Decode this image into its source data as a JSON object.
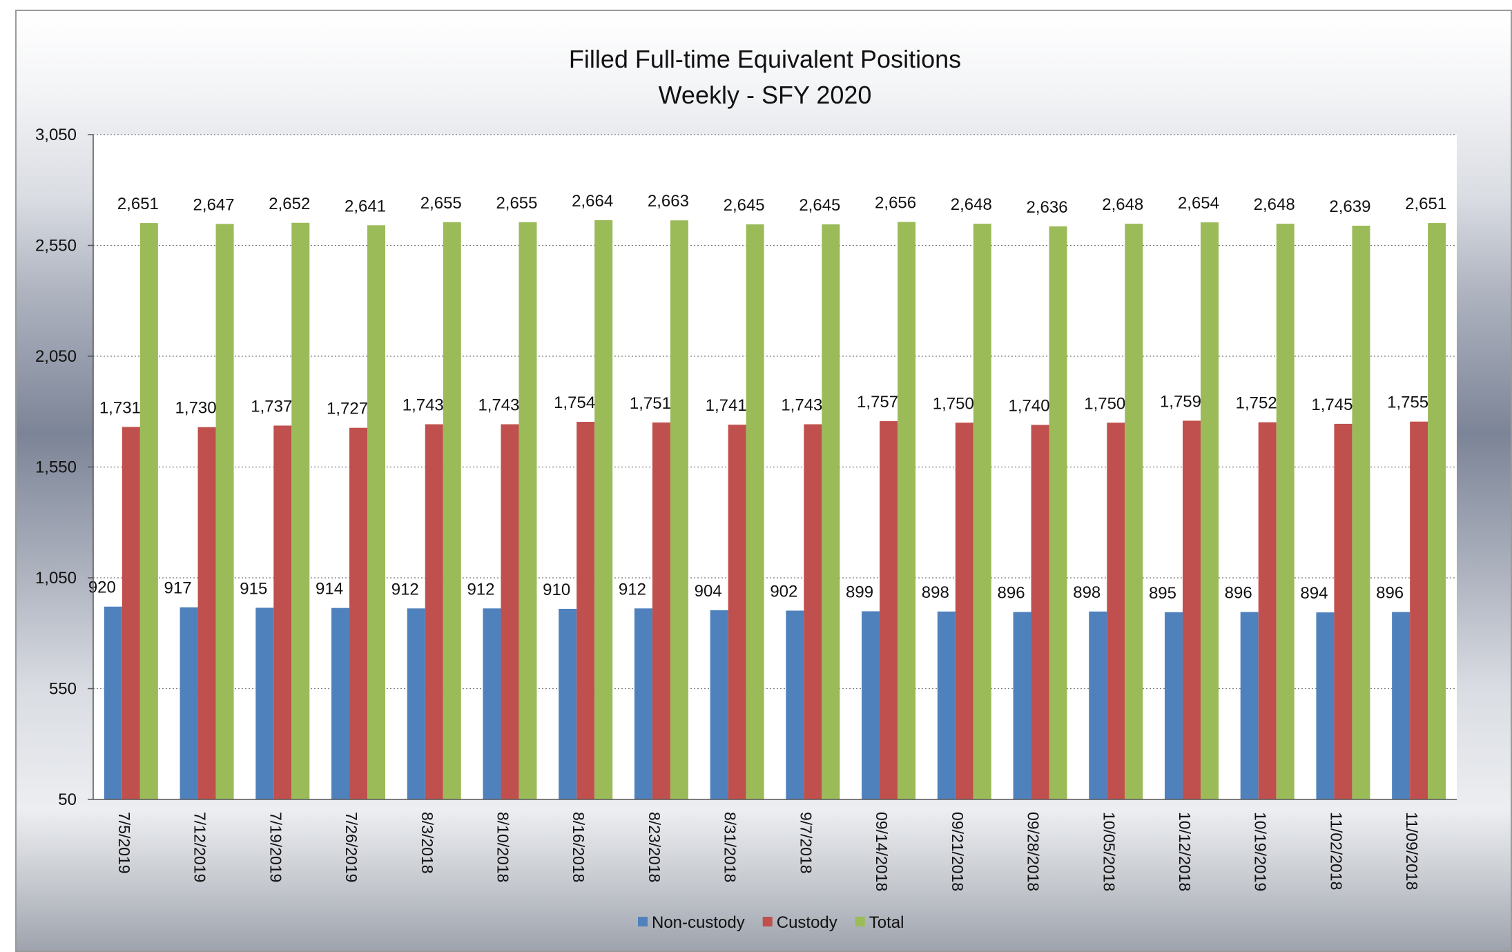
{
  "chart_data": {
    "type": "bar",
    "title": "Filled Full-time Equivalent Positions",
    "subtitle": "Weekly - SFY 2020",
    "xlabel": "",
    "ylabel": "",
    "ylim": [
      50,
      3050
    ],
    "yticks": [
      "3,050",
      "2,550",
      "2,050",
      "1,550",
      "1,050",
      "550",
      "50"
    ],
    "ytick_values": [
      3050,
      2550,
      2050,
      1550,
      1050,
      550,
      50
    ],
    "grid": true,
    "legend_position": "bottom",
    "categories": [
      "7/5/2019",
      "7/12/2019",
      "7/19/2019",
      "7/26/2019",
      "8/3/2018",
      "8/10/2018",
      "8/16/2018",
      "8/23/2018",
      "8/31/2018",
      "9/7/2018",
      "09/14/2018",
      "09/21/2018",
      "09/28/2018",
      "10/05/2018",
      "10/12/2018",
      "10/19/2019",
      "11/02/2018",
      "11/09/2018"
    ],
    "series": [
      {
        "name": "Non-custody",
        "color": "#4f81bd",
        "values": [
          920,
          917,
          915,
          914,
          912,
          912,
          910,
          912,
          904,
          902,
          899,
          898,
          896,
          898,
          895,
          896,
          894,
          896
        ],
        "labels": [
          "920",
          "917",
          "915",
          "914",
          "912",
          "912",
          "910",
          "912",
          "904",
          "902",
          "899",
          "898",
          "896",
          "898",
          "895",
          "896",
          "894",
          "896"
        ]
      },
      {
        "name": "Custody",
        "color": "#c0504d",
        "values": [
          1731,
          1730,
          1737,
          1727,
          1743,
          1743,
          1754,
          1751,
          1741,
          1743,
          1757,
          1750,
          1740,
          1750,
          1759,
          1752,
          1745,
          1755
        ],
        "labels": [
          "1,731",
          "1,730",
          "1,737",
          "1,727",
          "1,743",
          "1,743",
          "1,754",
          "1,751",
          "1,741",
          "1,743",
          "1,757",
          "1,750",
          "1,740",
          "1,750",
          "1,759",
          "1,752",
          "1,745",
          "1,755"
        ]
      },
      {
        "name": "Total",
        "color": "#9bbb59",
        "values": [
          2651,
          2647,
          2652,
          2641,
          2655,
          2655,
          2664,
          2663,
          2645,
          2645,
          2656,
          2648,
          2636,
          2648,
          2654,
          2648,
          2639,
          2651
        ],
        "labels": [
          "2,651",
          "2,647",
          "2,652",
          "2,641",
          "2,655",
          "2,655",
          "2,664",
          "2,663",
          "2,645",
          "2,645",
          "2,656",
          "2,648",
          "2,636",
          "2,648",
          "2,654",
          "2,648",
          "2,639",
          "2,651"
        ]
      }
    ]
  }
}
